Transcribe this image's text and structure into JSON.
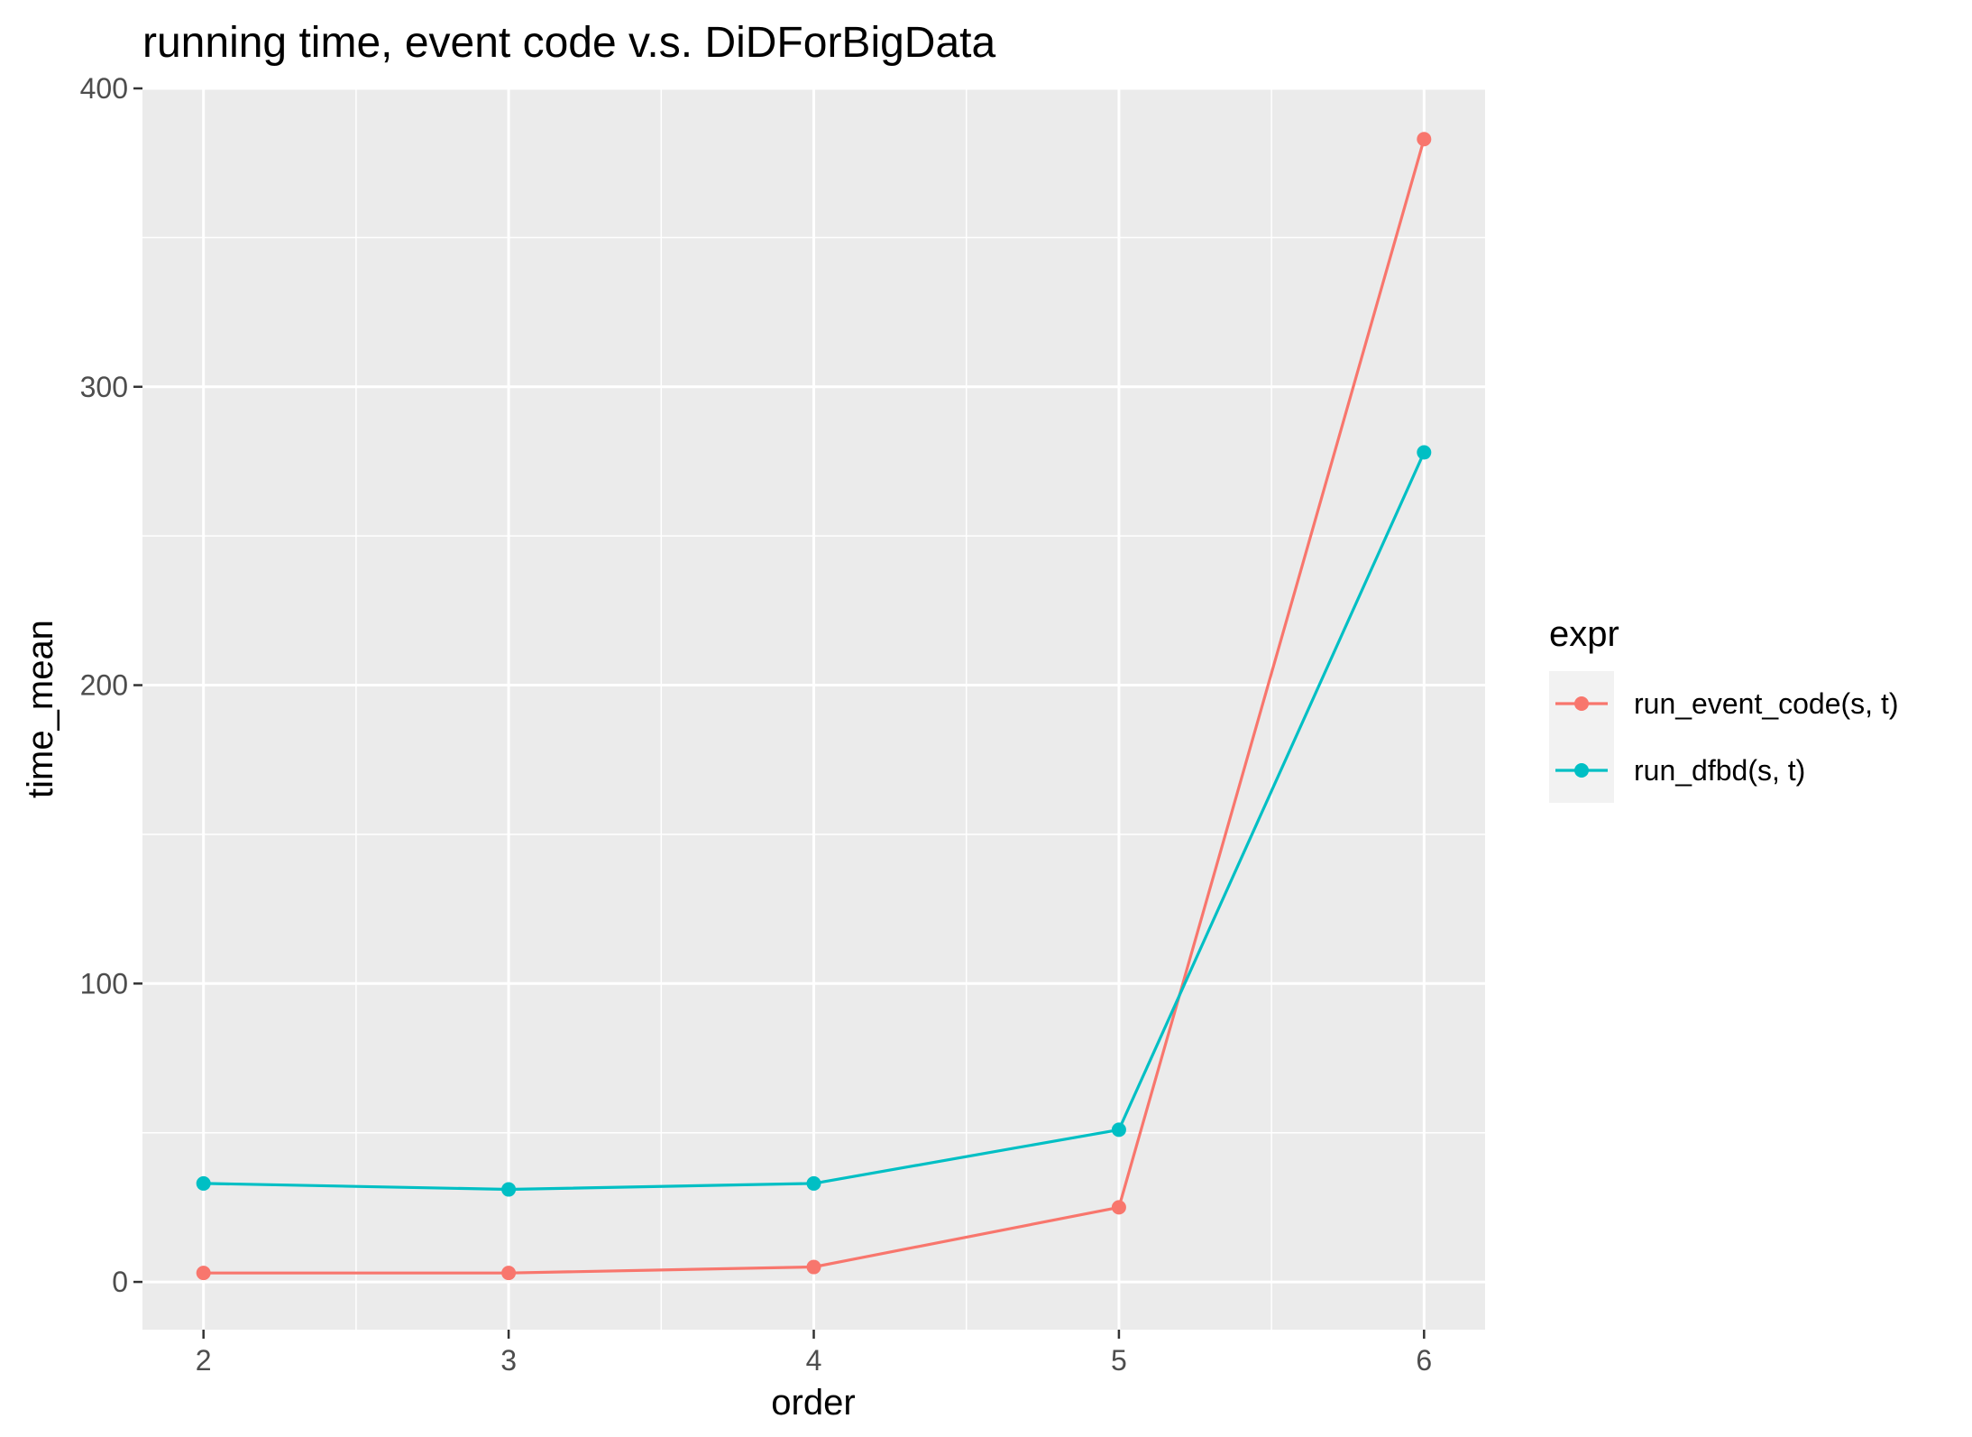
{
  "chart_data": {
    "type": "line",
    "title": "running time, event code v.s. DiDForBigData",
    "xlabel": "order",
    "ylabel": "time_mean",
    "x": [
      2,
      3,
      4,
      5,
      6
    ],
    "xticks": [
      "2",
      "3",
      "4",
      "5",
      "6"
    ],
    "yticks": [
      "0",
      "100",
      "200",
      "300",
      "400"
    ],
    "xlim": [
      1.8,
      6.2
    ],
    "ylim": [
      -16,
      400
    ],
    "grid": true,
    "legend": {
      "title": "expr",
      "position": "right"
    },
    "series": [
      {
        "name": "run_event_code(s, t)",
        "color": "#F8766D",
        "values": [
          3,
          3,
          5,
          25,
          383
        ]
      },
      {
        "name": "run_dfbd(s, t)",
        "color": "#00BFC4",
        "values": [
          33,
          31,
          33,
          51,
          278
        ]
      }
    ]
  }
}
